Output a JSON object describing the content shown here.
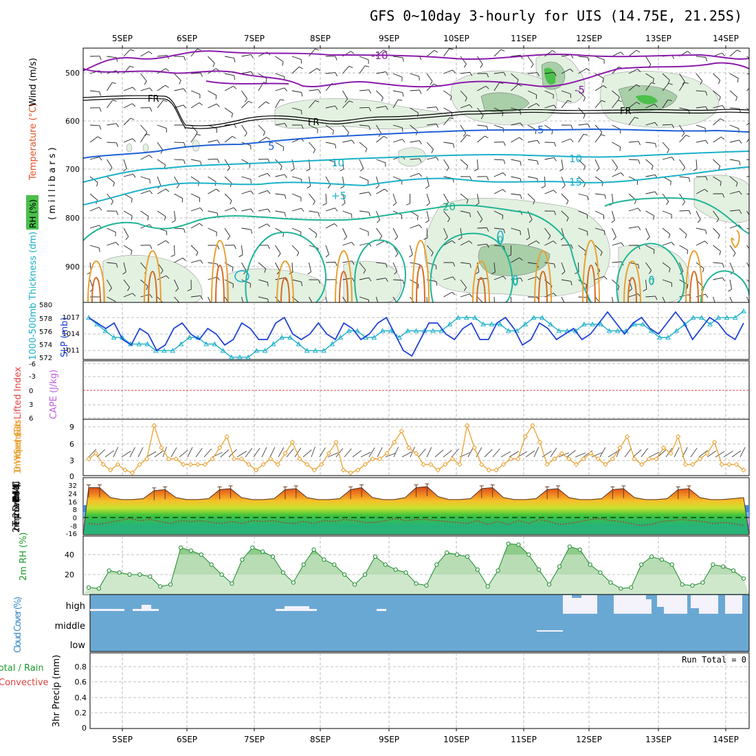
{
  "title": "GFS 0~10day 3-hourly for UIS (14.75E, 21.25S)",
  "dates": [
    "5SEP",
    "6SEP",
    "7SEP",
    "8SEP",
    "9SEP",
    "10SEP",
    "11SEP",
    "12SEP",
    "13SEP",
    "14SEP"
  ],
  "colors": {
    "purple": "#8a1aaa",
    "blue": "#1f5fd6",
    "cyan": "#19b0c8",
    "teal": "#1eb495",
    "orange": "#e8a030",
    "darkorange": "#d86a20",
    "frz": "#000000",
    "sky": "#6aa8d4"
  },
  "upper_air": {
    "ylabel_parts": [
      "Wind (m/s)",
      "Temperature (°C)",
      "RH (%)",
      "(millibars)"
    ],
    "yticks": [
      "500",
      "600",
      "700",
      "800",
      "900"
    ],
    "contour_labels": [
      "-10",
      "-5",
      "FR",
      "FR",
      "FR",
      "5",
      "5",
      "10",
      "10",
      "15",
      "+5",
      "20",
      "0",
      "0",
      "0"
    ]
  },
  "slp_panel": {
    "label_thickness": "1000-500mb Thickness (dm)",
    "label_slp": "SLP (mb)",
    "left_ticks": [
      "580",
      "578",
      "576",
      "574",
      "572"
    ],
    "right_ticks": [
      "1017",
      "1014",
      "1011"
    ]
  },
  "cape_panel": {
    "label_li": "Lifted Index",
    "label_cape": "CAPE (J/kg)",
    "ticks": [
      "-6",
      "-3",
      "0",
      "3",
      "6"
    ]
  },
  "wind_panel": {
    "label": "10m Wind Speed (m/s) & Barbs",
    "ticks": [
      "9",
      "6",
      "3",
      "0"
    ]
  },
  "temp_panel": {
    "label": "2m Temp 2m DewPt (6hr Min/Max) (°C)",
    "ticks": [
      "32",
      "24",
      "16",
      "8",
      "0",
      "-8",
      "-16"
    ]
  },
  "rh_panel": {
    "label": "2m RH (%)",
    "ticks": [
      "40",
      "20"
    ]
  },
  "cloud_panel": {
    "label": "Cloud Cover (%)",
    "levels": [
      "high",
      "middle",
      "low"
    ]
  },
  "precip_panel": {
    "label_total": "Total / Rain",
    "label_conv": "Convective",
    "label_unit": "3hr Precip (mm)",
    "run_total": "Run Total = 0",
    "ticks": [
      "0.8",
      "0.6",
      "0.4",
      "0.2",
      "0"
    ]
  },
  "chart_data": [
    {
      "type": "line",
      "name": "SLP",
      "x_unit": "3-hourly steps from 4SEP 12Z",
      "values": [
        1017,
        1016,
        1015,
        1016,
        1013,
        1012,
        1015,
        1014,
        1011,
        1012,
        1015,
        1016,
        1014,
        1013,
        1015,
        1014,
        1012,
        1013,
        1016,
        1015,
        1013,
        1013,
        1016,
        1017,
        1014,
        1013,
        1014,
        1016,
        1014,
        1013,
        1016,
        1015,
        1013,
        1014,
        1016,
        1017,
        1014,
        1011,
        1010,
        1013,
        1016,
        1016,
        1014,
        1013,
        1015,
        1016,
        1013,
        1013,
        1016,
        1017,
        1015,
        1012,
        1013,
        1016,
        1015,
        1013,
        1014,
        1015,
        1013,
        1014,
        1016,
        1018,
        1016,
        1014,
        1016,
        1017,
        1015,
        1014,
        1016,
        1018,
        1016,
        1013,
        1015,
        1017,
        1016,
        1014,
        1013,
        1016
      ]
    },
    {
      "type": "line",
      "name": "Thickness",
      "values": [
        578,
        577,
        576,
        575,
        575,
        574,
        574,
        574,
        573,
        573,
        573,
        574,
        575,
        575,
        574,
        574,
        573,
        572,
        572,
        572,
        573,
        573,
        574,
        575,
        575,
        574,
        573,
        573,
        573,
        574,
        575,
        576,
        576,
        575,
        575,
        576,
        576,
        575,
        576,
        576,
        576,
        576,
        576,
        577,
        578,
        578,
        578,
        577,
        577,
        577,
        576,
        576,
        577,
        578,
        578,
        577,
        576,
        576,
        576,
        577,
        577,
        577,
        576,
        576,
        576,
        577,
        577,
        576,
        575,
        575,
        576,
        577,
        578,
        578,
        577,
        578,
        578,
        578,
        579
      ]
    },
    {
      "type": "line",
      "name": "10m Wind Speed",
      "values": [
        3,
        4,
        2,
        1,
        2,
        1,
        0.5,
        2,
        3,
        9,
        5,
        3,
        3,
        2,
        2,
        2,
        2,
        3,
        5,
        7,
        3,
        3,
        2,
        1,
        2,
        3,
        2,
        4,
        6,
        3,
        2,
        1,
        2,
        4,
        6,
        1,
        0.5,
        1,
        2,
        3,
        3,
        4,
        6,
        8,
        5,
        4,
        2,
        2,
        1,
        2,
        3,
        2,
        9,
        5,
        2,
        1,
        1,
        2,
        3,
        3,
        7,
        9,
        6,
        2,
        3,
        4,
        3,
        2,
        3,
        4,
        3,
        2,
        3,
        5,
        7,
        3,
        2,
        3,
        3,
        5,
        4,
        7,
        2,
        2,
        3,
        4,
        6,
        2,
        2,
        2,
        1
      ]
    },
    {
      "type": "area",
      "name": "2m Temp",
      "values": [
        30,
        30,
        20,
        18,
        18,
        19,
        27,
        28,
        20,
        18,
        18,
        19,
        28,
        29,
        20,
        18,
        18,
        19,
        28,
        29,
        20,
        18,
        18,
        19,
        28,
        30,
        20,
        18,
        18,
        20,
        30,
        31,
        21,
        18,
        18,
        19,
        29,
        30,
        20,
        18,
        18,
        19,
        28,
        29,
        20,
        18,
        18,
        19,
        28,
        29,
        20,
        18,
        18,
        19,
        28,
        29,
        20,
        18,
        18,
        19,
        20
      ]
    },
    {
      "type": "line",
      "name": "2m DewPt",
      "values": [
        -6,
        -7,
        -5,
        -3,
        -1,
        -3,
        -2,
        -4,
        -6,
        -3,
        -4,
        -3,
        -5,
        -6,
        -4,
        -6,
        -3,
        -4,
        -3,
        -5,
        -6,
        -4,
        -6,
        -3,
        -4,
        -2,
        -3,
        -5,
        -5,
        -3,
        -1,
        -3,
        -2,
        -2,
        -3,
        -4,
        -5,
        -6,
        -3,
        -7,
        -4,
        -7,
        -3,
        -6,
        -2,
        -4,
        -7,
        -6,
        -4,
        -2,
        -1,
        -3,
        -4,
        -6,
        -8,
        -7,
        -4,
        -3,
        -2,
        -3,
        -4,
        -6,
        -5,
        -6,
        -8
      ]
    },
    {
      "type": "area",
      "name": "2m RH",
      "values": [
        7,
        6,
        24,
        22,
        20,
        20,
        18,
        8,
        10,
        47,
        44,
        40,
        30,
        20,
        11,
        35,
        47,
        43,
        38,
        22,
        12,
        30,
        45,
        35,
        30,
        20,
        10,
        20,
        38,
        30,
        25,
        22,
        11,
        9,
        30,
        42,
        40,
        38,
        25,
        8,
        24,
        51,
        50,
        40,
        25,
        10,
        28,
        48,
        45,
        30,
        22,
        12,
        6,
        7,
        30,
        38,
        35,
        30,
        10,
        9,
        12,
        30,
        28,
        24,
        16
      ]
    }
  ]
}
